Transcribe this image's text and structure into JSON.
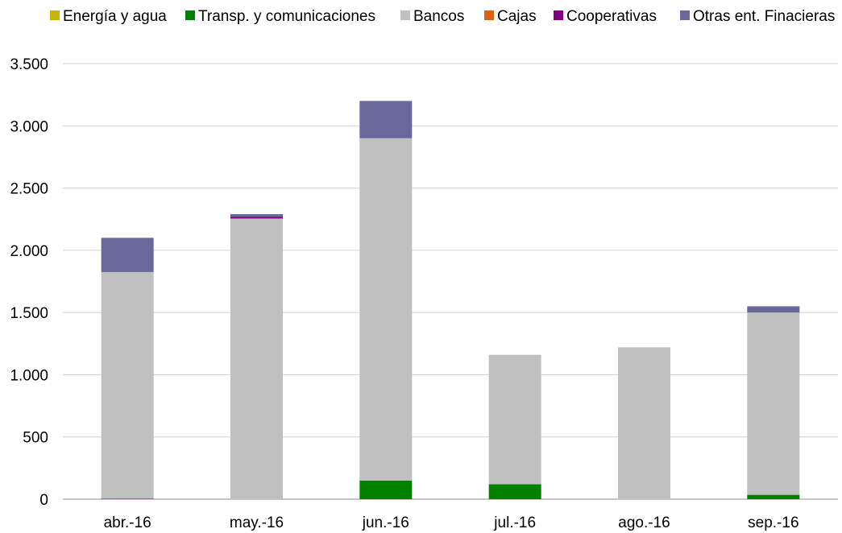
{
  "chart_data": {
    "type": "bar",
    "stacked": true,
    "categories": [
      "abr.-16",
      "may.-16",
      "jun.-16",
      "jul.-16",
      "ago.-16",
      "sep.-16"
    ],
    "series": [
      {
        "name": "Energía y agua",
        "color": "#c8b400",
        "values": [
          0,
          0,
          0,
          0,
          0,
          0
        ]
      },
      {
        "name": "Transp. y comunicaciones",
        "color": "#008000",
        "values": [
          5,
          0,
          150,
          120,
          0,
          35
        ]
      },
      {
        "name": "Bancos",
        "color": "#c0c0c0",
        "values": [
          1820,
          2255,
          2750,
          1040,
          1220,
          1465
        ]
      },
      {
        "name": "Cajas",
        "color": "#e06010",
        "values": [
          0,
          0,
          0,
          0,
          0,
          0
        ]
      },
      {
        "name": "Cooperativas",
        "color": "#800080",
        "values": [
          0,
          15,
          0,
          0,
          0,
          0
        ]
      },
      {
        "name": "Otras ent. Finacieras",
        "color": "#68689a",
        "values": [
          275,
          20,
          300,
          0,
          0,
          50
        ]
      }
    ],
    "ylim": [
      0,
      3500
    ],
    "yticks": [
      0,
      500,
      1000,
      1500,
      2000,
      2500,
      3000,
      3500
    ],
    "ytick_labels": [
      "0",
      "500",
      "1.000",
      "1.500",
      "2.000",
      "2.500",
      "3.000",
      "3.500"
    ],
    "grid": true,
    "legend_position": "top"
  }
}
